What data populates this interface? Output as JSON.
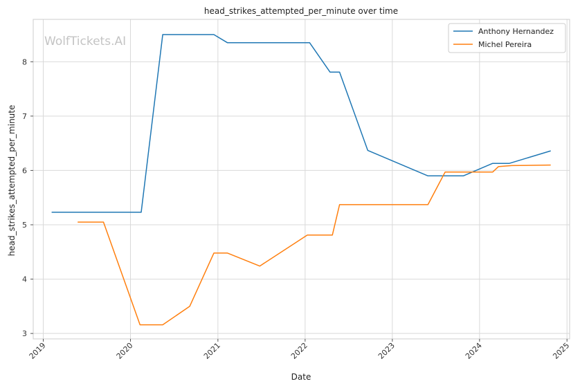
{
  "chart_data": {
    "type": "line",
    "title": "head_strikes_attempted_per_minute over time",
    "xlabel": "Date",
    "ylabel": "head_strikes_attempted_per_minute",
    "watermark": "WolfTickets.AI",
    "xlim": [
      "2018-11-20",
      "2025-01-12"
    ],
    "ylim": [
      2.9,
      8.78
    ],
    "x_ticks": [
      "2019-01-01",
      "2020-01-01",
      "2021-01-01",
      "2022-01-01",
      "2023-01-01",
      "2024-01-01",
      "2025-01-01"
    ],
    "x_tick_labels": [
      "2019",
      "2020",
      "2021",
      "2022",
      "2023",
      "2024",
      "2025"
    ],
    "y_ticks": [
      3,
      4,
      5,
      6,
      7,
      8
    ],
    "y_tick_labels": [
      "3",
      "4",
      "5",
      "6",
      "7",
      "8"
    ],
    "grid": true,
    "legend_position": "top-right",
    "series": [
      {
        "name": "Anthony Hernandez",
        "color": "#1f77b4",
        "points": [
          [
            "2019-02-05",
            5.23
          ],
          [
            "2020-02-15",
            5.23
          ],
          [
            "2020-05-15",
            8.5
          ],
          [
            "2020-12-15",
            8.5
          ],
          [
            "2021-02-10",
            8.35
          ],
          [
            "2022-01-20",
            8.35
          ],
          [
            "2022-04-15",
            7.81
          ],
          [
            "2022-05-25",
            7.81
          ],
          [
            "2022-09-20",
            6.37
          ],
          [
            "2023-05-30",
            5.9
          ],
          [
            "2023-10-25",
            5.9
          ],
          [
            "2024-02-25",
            6.13
          ],
          [
            "2024-05-05",
            6.13
          ],
          [
            "2024-10-25",
            6.36
          ]
        ]
      },
      {
        "name": "Michel Pereira",
        "color": "#ff7f0e",
        "points": [
          [
            "2019-05-25",
            5.05
          ],
          [
            "2019-09-10",
            5.05
          ],
          [
            "2020-02-10",
            3.16
          ],
          [
            "2020-05-15",
            3.16
          ],
          [
            "2020-09-05",
            3.5
          ],
          [
            "2020-12-15",
            4.48
          ],
          [
            "2021-02-10",
            4.48
          ],
          [
            "2021-06-25",
            4.24
          ],
          [
            "2022-01-10",
            4.81
          ],
          [
            "2022-04-25",
            4.81
          ],
          [
            "2022-05-25",
            5.37
          ],
          [
            "2023-05-30",
            5.37
          ],
          [
            "2023-08-10",
            5.97
          ],
          [
            "2024-02-25",
            5.97
          ],
          [
            "2024-03-20",
            6.07
          ],
          [
            "2024-05-15",
            6.09
          ],
          [
            "2024-10-25",
            6.1
          ]
        ]
      }
    ]
  }
}
